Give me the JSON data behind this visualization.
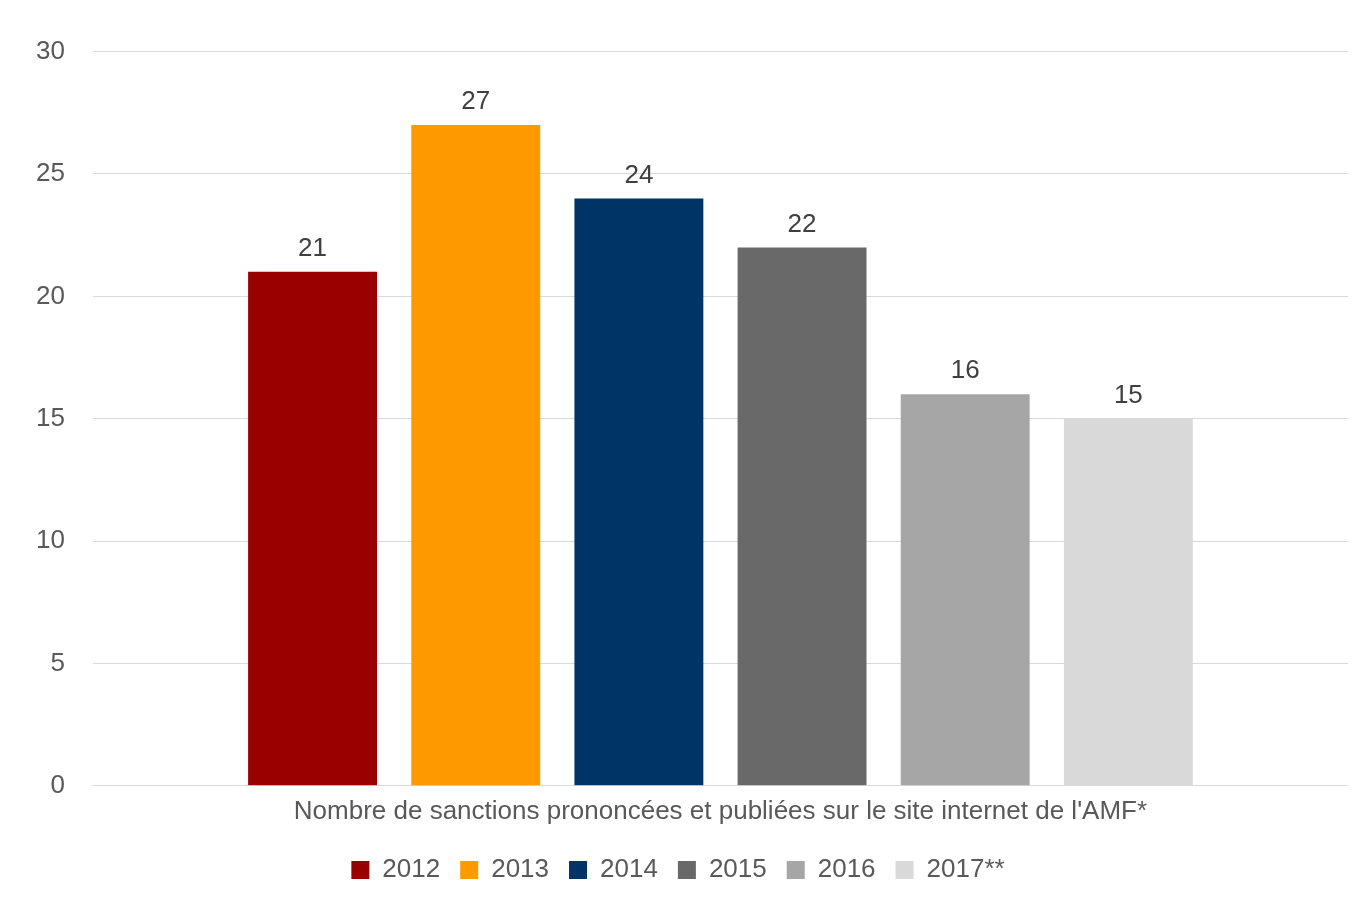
{
  "chart_data": {
    "type": "bar",
    "categories": [
      "Nombre de sanctions prononcées et publiées sur le site internet de l'AMF*"
    ],
    "series": [
      {
        "name": "2012",
        "color": "#990000",
        "values": [
          21
        ]
      },
      {
        "name": "2013",
        "color": "#ff9900",
        "values": [
          27
        ]
      },
      {
        "name": "2014",
        "color": "#003366",
        "values": [
          24
        ]
      },
      {
        "name": "2015",
        "color": "#696969",
        "values": [
          22
        ]
      },
      {
        "name": "2016",
        "color": "#a6a6a6",
        "values": [
          16
        ]
      },
      {
        "name": "2017**",
        "color": "#d9d9d9",
        "values": [
          15
        ]
      }
    ],
    "ylim": [
      0,
      30
    ],
    "yticks": [
      0,
      5,
      10,
      15,
      20,
      25,
      30
    ],
    "grid": "y",
    "legend": "bottom",
    "data_labels": true
  }
}
